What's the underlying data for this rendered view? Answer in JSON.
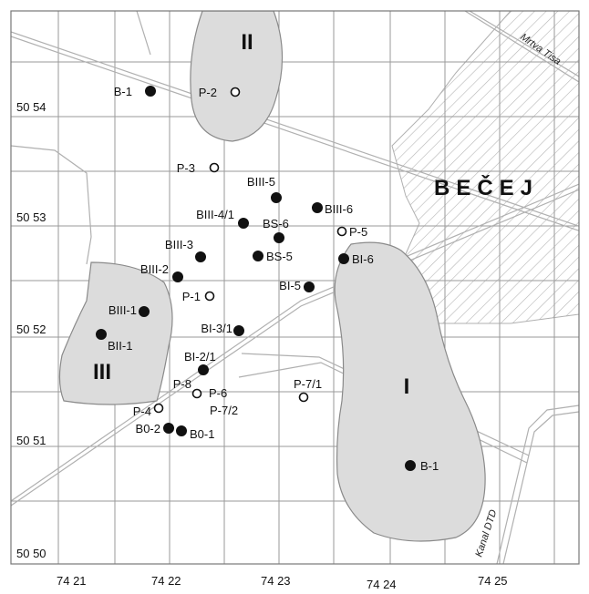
{
  "map": {
    "town_label": "BEČEJ",
    "river_label": "Mrtva Tisa",
    "canal_label": "Kanal DTD",
    "colors": {
      "zone_fill": "#dcdcdc",
      "zone_stroke": "#8a8a8a",
      "grid": "#9a9a9a",
      "road": "#b0b0b0",
      "hatch": "#b5b5b5",
      "marker_filled": "#111111",
      "marker_open": "#ffffff"
    },
    "zones": [
      {
        "id": "zone-i",
        "label": "I"
      },
      {
        "id": "zone-ii",
        "label": "II"
      },
      {
        "id": "zone-iii",
        "label": "III"
      }
    ],
    "y_ticks": [
      "50 54",
      "50 53",
      "50 52",
      "50 51",
      "50 50"
    ],
    "x_ticks": [
      "74 21",
      "74 22",
      "74 23",
      "74 24",
      "74 25"
    ],
    "wells": [
      {
        "label": "B-1",
        "marker": "filled"
      },
      {
        "label": "P-2",
        "marker": "open"
      },
      {
        "label": "P-3",
        "marker": "open"
      },
      {
        "label": "BIII-5",
        "marker": "filled"
      },
      {
        "label": "BIII-6",
        "marker": "filled"
      },
      {
        "label": "BIII-4/1",
        "marker": "filled"
      },
      {
        "label": "BS-6",
        "marker": "filled"
      },
      {
        "label": "P-5",
        "marker": "open"
      },
      {
        "label": "BIII-3",
        "marker": "filled"
      },
      {
        "label": "BS-5",
        "marker": "filled"
      },
      {
        "label": "BI-6",
        "marker": "filled"
      },
      {
        "label": "BIII-2",
        "marker": "filled"
      },
      {
        "label": "BI-5",
        "marker": "filled"
      },
      {
        "label": "P-1",
        "marker": "open"
      },
      {
        "label": "BIII-1",
        "marker": "filled"
      },
      {
        "label": "BI-3/1",
        "marker": "filled"
      },
      {
        "label": "BII-1",
        "marker": "filled"
      },
      {
        "label": "BI-2/1",
        "marker": "filled"
      },
      {
        "label": "P-8",
        "marker": "open"
      },
      {
        "label": "P-7/1",
        "marker": "open"
      },
      {
        "label": "P-6",
        "marker": "open"
      },
      {
        "label": "P-7/2",
        "marker": "open"
      },
      {
        "label": "P-4",
        "marker": "open"
      },
      {
        "label": "B0-2",
        "marker": "filled"
      },
      {
        "label": "B0-1",
        "marker": "filled"
      },
      {
        "label": "B-1",
        "marker": "filled"
      }
    ]
  }
}
